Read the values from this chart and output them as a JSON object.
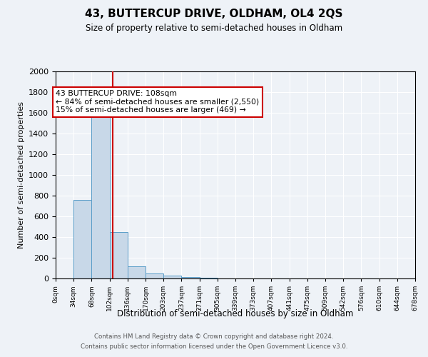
{
  "title": "43, BUTTERCUP DRIVE, OLDHAM, OL4 2QS",
  "subtitle": "Size of property relative to semi-detached houses in Oldham",
  "xlabel": "Distribution of semi-detached houses by size in Oldham",
  "ylabel": "Number of semi-detached properties",
  "footer_line1": "Contains HM Land Registry data © Crown copyright and database right 2024.",
  "footer_line2": "Contains public sector information licensed under the Open Government Licence v3.0.",
  "bin_labels": [
    "0sqm",
    "34sqm",
    "68sqm",
    "102sqm",
    "136sqm",
    "170sqm",
    "203sqm",
    "237sqm",
    "271sqm",
    "305sqm",
    "339sqm",
    "373sqm",
    "407sqm",
    "441sqm",
    "475sqm",
    "509sqm",
    "542sqm",
    "576sqm",
    "610sqm",
    "644sqm",
    "678sqm"
  ],
  "bar_values": [
    0,
    760,
    1640,
    450,
    115,
    45,
    25,
    15,
    10,
    0,
    0,
    0,
    0,
    0,
    0,
    0,
    0,
    0,
    0,
    0
  ],
  "bar_color": "#c8d8e8",
  "bar_edge_color": "#5a9dc8",
  "property_line_x": 108,
  "property_line_label": "43 BUTTERCUP DRIVE: 108sqm",
  "annotation_smaller": "← 84% of semi-detached houses are smaller (2,550)",
  "annotation_larger": "15% of semi-detached houses are larger (469) →",
  "annotation_box_color": "#ffffff",
  "annotation_box_edge": "#cc0000",
  "line_color": "#cc0000",
  "ylim": [
    0,
    2000
  ],
  "yticks": [
    0,
    200,
    400,
    600,
    800,
    1000,
    1200,
    1400,
    1600,
    1800,
    2000
  ],
  "bin_width": 34,
  "num_bins": 20,
  "background_color": "#eef2f7"
}
